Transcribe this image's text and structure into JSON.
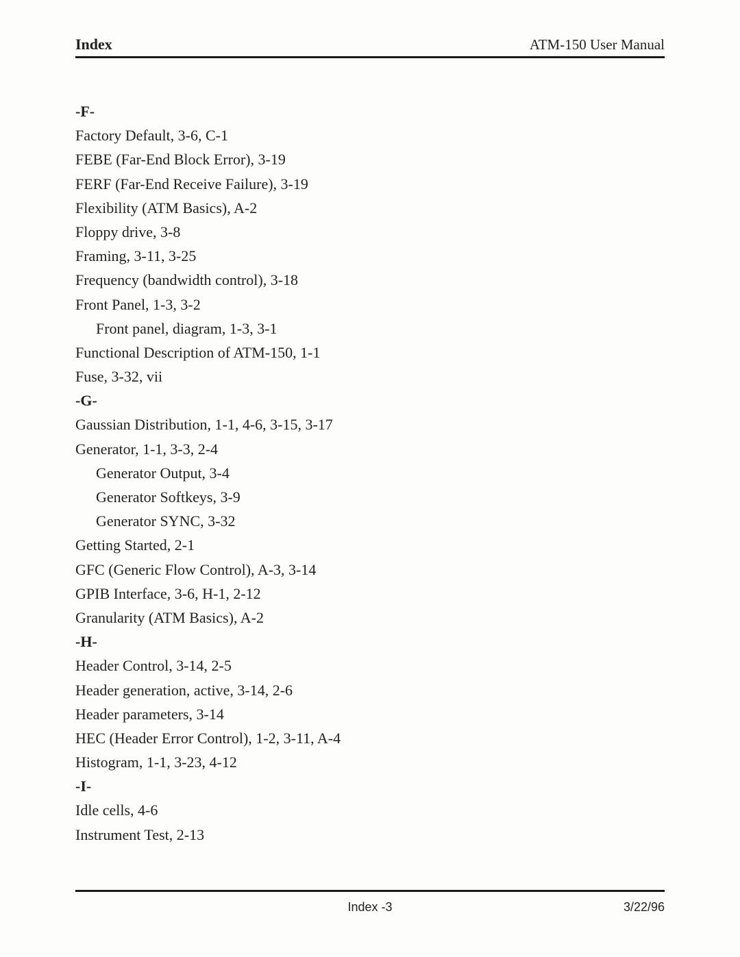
{
  "header": {
    "left": "Index",
    "right": "ATM-150 User Manual"
  },
  "sections": {
    "F": {
      "label": "-F-",
      "entries": [
        {
          "text": "Factory Default, 3-6, C-1",
          "indent": 0
        },
        {
          "text": "FEBE (Far-End Block Error), 3-19",
          "indent": 0
        },
        {
          "text": "FERF (Far-End Receive Failure), 3-19",
          "indent": 0
        },
        {
          "text": "Flexibility (ATM Basics), A-2",
          "indent": 0
        },
        {
          "text": "Floppy drive, 3-8",
          "indent": 0
        },
        {
          "text": "Framing, 3-11, 3-25",
          "indent": 0
        },
        {
          "text": "Frequency (bandwidth control), 3-18",
          "indent": 0
        },
        {
          "text": "Front Panel, 1-3, 3-2",
          "indent": 0
        },
        {
          "text": "Front panel, diagram, 1-3, 3-1",
          "indent": 1
        },
        {
          "text": "Functional Description of ATM-150, 1-1",
          "indent": 0
        },
        {
          "text": "Fuse, 3-32, vii",
          "indent": 0
        }
      ]
    },
    "G": {
      "label": "-G-",
      "entries": [
        {
          "text": "Gaussian Distribution, 1-1, 4-6, 3-15, 3-17",
          "indent": 0
        },
        {
          "text": "Generator, 1-1, 3-3, 2-4",
          "indent": 0
        },
        {
          "text": "Generator Output, 3-4",
          "indent": 1
        },
        {
          "text": "Generator Softkeys, 3-9",
          "indent": 1
        },
        {
          "text": "Generator SYNC, 3-32",
          "indent": 1
        },
        {
          "text": "Getting Started, 2-1",
          "indent": 0
        },
        {
          "text": "GFC (Generic Flow Control), A-3, 3-14",
          "indent": 0
        },
        {
          "text": "GPIB Interface, 3-6, H-1, 2-12",
          "indent": 0
        },
        {
          "text": "Granularity (ATM Basics), A-2",
          "indent": 0
        }
      ]
    },
    "H": {
      "label": "-H-",
      "entries": [
        {
          "text": "Header Control, 3-14, 2-5",
          "indent": 0
        },
        {
          "text": "Header generation, active, 3-14, 2-6",
          "indent": 0
        },
        {
          "text": "Header parameters, 3-14",
          "indent": 0
        },
        {
          "text": "HEC (Header Error Control), 1-2, 3-11, A-4",
          "indent": 0
        },
        {
          "text": "Histogram, 1-1, 3-23, 4-12",
          "indent": 0
        }
      ]
    },
    "I": {
      "label": "-I-",
      "entries": [
        {
          "text": "Idle cells, 4-6",
          "indent": 0
        },
        {
          "text": "Instrument Test, 2-13",
          "indent": 0
        }
      ]
    }
  },
  "footer": {
    "center": "Index -3",
    "right": "3/22/96"
  }
}
